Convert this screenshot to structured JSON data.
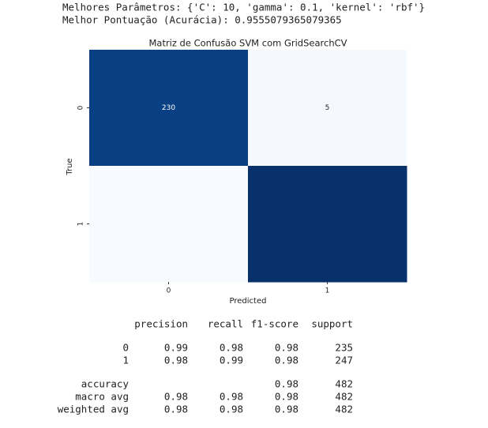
{
  "output_lines": [
    "Melhores Parâmetros: {'C': 10, 'gamma': 0.1, 'kernel': 'rbf'}",
    "Melhor Pontuação (Acurácia): 0.9555079365079365"
  ],
  "chart_data": {
    "type": "heatmap",
    "title": "Matriz de Confusão SVM com GridSearchCV",
    "x_categories": [
      "0",
      "1"
    ],
    "y_categories": [
      "0",
      "1"
    ],
    "xlabel": "Predicted",
    "ylabel": "True",
    "values": [
      [
        230,
        5
      ],
      [
        2,
        245
      ]
    ],
    "value_labels": [
      [
        "230",
        "5"
      ],
      [
        null,
        null
      ]
    ],
    "colormap": "Blues"
  },
  "report": {
    "headers": [
      "precision",
      "recall",
      "f1-score",
      "support"
    ],
    "rows": [
      {
        "label": "0",
        "values": [
          0.99,
          0.98,
          0.98,
          235
        ]
      },
      {
        "label": "1",
        "values": [
          0.98,
          0.99,
          0.98,
          247
        ]
      },
      {
        "label": "accuracy",
        "values": [
          null,
          null,
          0.98,
          482
        ]
      },
      {
        "label": "macro avg",
        "values": [
          0.98,
          0.98,
          0.98,
          482
        ]
      },
      {
        "label": "weighted avg",
        "values": [
          0.98,
          0.98,
          0.98,
          482
        ]
      }
    ]
  }
}
